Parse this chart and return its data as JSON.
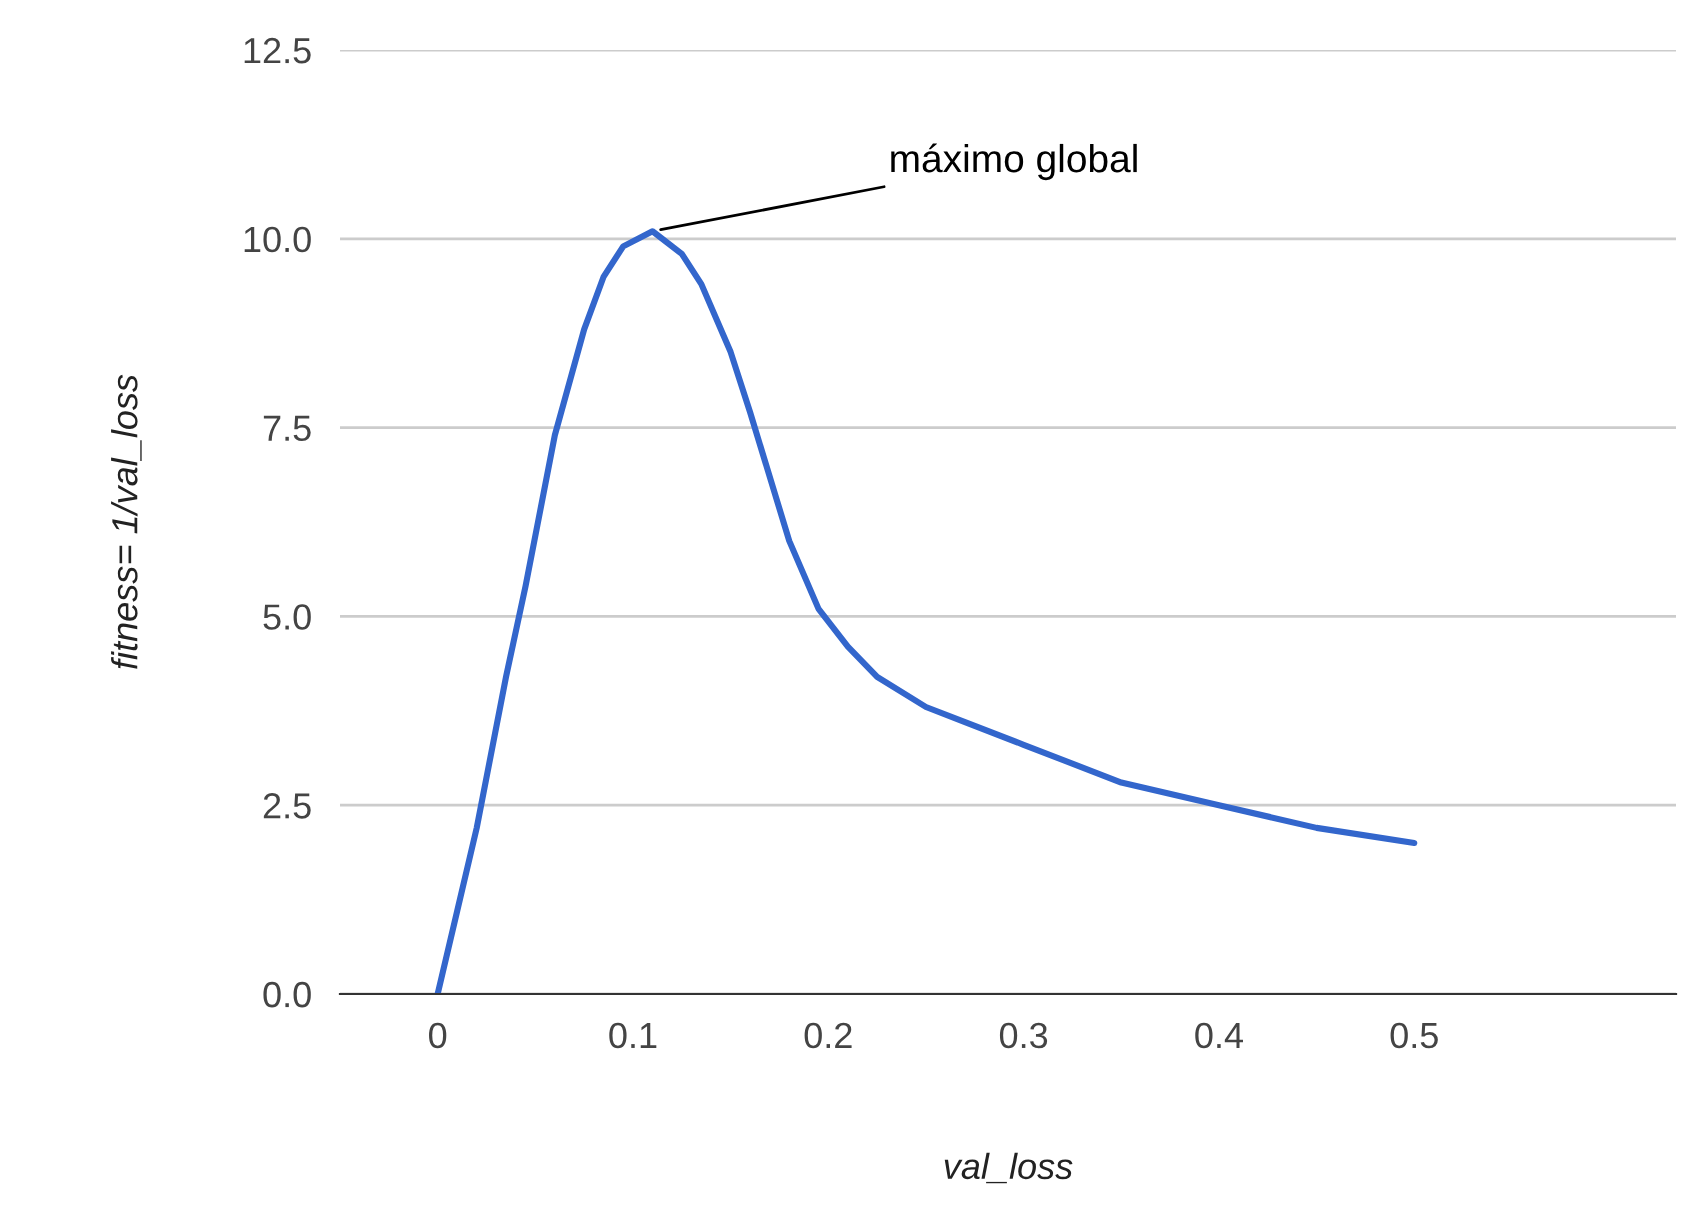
{
  "chart_data": {
    "type": "line",
    "xlabel": "val_loss",
    "ylabel": "fitness= 1/val_loss",
    "x": [
      0,
      0.01,
      0.02,
      0.035,
      0.045,
      0.06,
      0.075,
      0.085,
      0.095,
      0.11,
      0.125,
      0.135,
      0.15,
      0.16,
      0.18,
      0.195,
      0.21,
      0.225,
      0.25,
      0.27,
      0.3,
      0.35,
      0.4,
      0.45,
      0.5
    ],
    "series": [
      {
        "color": "#3366cc",
        "values": [
          0,
          1.1,
          2.2,
          4.2,
          5.4,
          7.4,
          8.8,
          9.5,
          9.9,
          10.1,
          9.8,
          9.4,
          8.5,
          7.7,
          6.0,
          5.1,
          4.6,
          4.2,
          3.8,
          3.6,
          3.3,
          2.8,
          2.5,
          2.2,
          2
        ]
      }
    ],
    "xlim": [
      -0.05,
      0.634
    ],
    "xticks": [
      {
        "value": 0,
        "label": "0"
      },
      0.1,
      0.2,
      0.3,
      0.4,
      0.5
    ],
    "ylim": [
      0,
      12.5
    ],
    "yticks": [
      {
        "value": 0,
        "label": "0.0"
      },
      {
        "value": 2.5,
        "label": "2.5"
      },
      {
        "value": 5,
        "label": "5.0"
      },
      {
        "value": 7.5,
        "label": "7.5"
      },
      {
        "value": 10,
        "label": "10.0"
      },
      {
        "value": 12.5,
        "label": "12.5"
      }
    ],
    "grid": "y",
    "annotations": [
      {
        "text": "máximo global",
        "x": 0.11,
        "y": 10.1
      }
    ]
  }
}
